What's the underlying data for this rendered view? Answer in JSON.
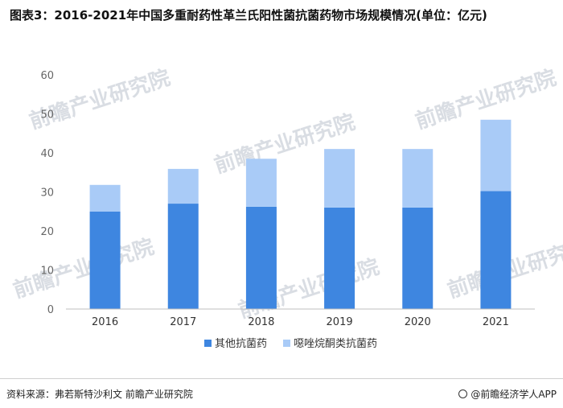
{
  "title": "图表3：2016-2021年中国多重耐药性革兰氏阳性菌抗菌药物市场规模情况(单位：亿元)",
  "watermark": "前瞻产业研究院",
  "source": "资料来源：弗若斯特沙利文 前瞻产业研究院",
  "brand": "@前瞻经济学人APP",
  "colors": {
    "series1": "#3e86e0",
    "series2": "#a9cbf7"
  },
  "chart_data": {
    "type": "bar",
    "stacked": true,
    "categories": [
      "2016",
      "2017",
      "2018",
      "2019",
      "2020",
      "2021"
    ],
    "series": [
      {
        "name": "其他抗菌药",
        "values": [
          25.0,
          27.0,
          26.2,
          26.0,
          26.0,
          30.2
        ]
      },
      {
        "name": "噁唑烷酮类抗菌药",
        "values": [
          6.8,
          8.9,
          12.3,
          15.0,
          15.0,
          18.3
        ]
      }
    ],
    "ylim": [
      0,
      60
    ],
    "yticks": [
      0,
      10,
      20,
      30,
      40,
      50,
      60
    ],
    "grid": false,
    "legend": "bottom"
  }
}
